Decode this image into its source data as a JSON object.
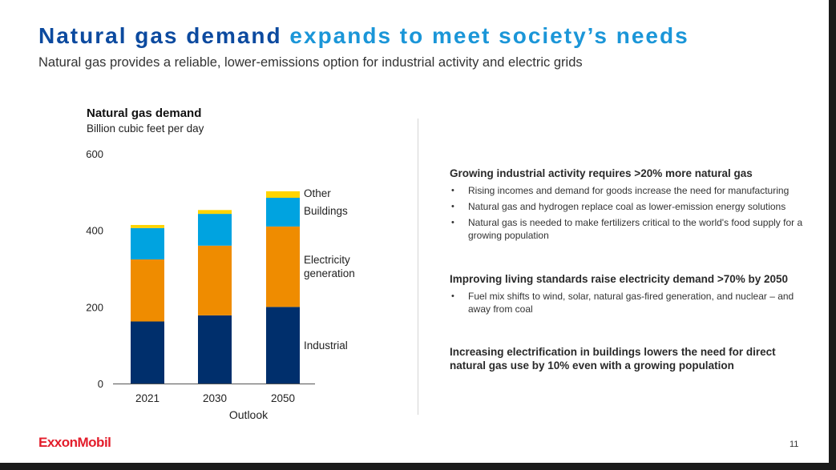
{
  "slide": {
    "title_part1": "Natural gas demand",
    "title_part2": "expands to meet society’s needs",
    "subtitle": "Natural gas provides a reliable, lower-emissions option for industrial activity and electric grids",
    "page_number": "11",
    "logo_text": "ExxonMobil",
    "colors": {
      "title_dark": "#0c4a9f",
      "title_light": "#1b96d8",
      "logo": "#e31d2b"
    }
  },
  "chart_data": {
    "type": "bar",
    "stacked": true,
    "title": "Natural gas demand",
    "ylabel": "Billion cubic feet per day",
    "xlabel": "Outlook",
    "categories": [
      "2021",
      "2030",
      "2050"
    ],
    "ylim": [
      0,
      600
    ],
    "yticks": [
      0,
      200,
      400,
      600
    ],
    "grid": false,
    "legend": "labels at right of last bar",
    "series": [
      {
        "name": "Industrial",
        "color": "#002f6c",
        "values": [
          162,
          178,
          200
        ]
      },
      {
        "name": "Electricity generation",
        "color": "#ef8c00",
        "values": [
          162,
          182,
          210
        ]
      },
      {
        "name": "Buildings",
        "color": "#00a3e0",
        "values": [
          82,
          83,
          75
        ]
      },
      {
        "name": "Other",
        "color": "#ffd400",
        "values": [
          8,
          10,
          17
        ]
      }
    ]
  },
  "sections": [
    {
      "heading": "Growing industrial activity requires >20% more natural gas",
      "bullets": [
        "Rising incomes and demand for goods increase the need for manufacturing",
        "Natural gas and hydrogen replace coal as lower-emission energy solutions",
        "Natural gas is needed to make fertilizers critical to the world's food supply for a growing population"
      ]
    },
    {
      "heading": "Improving living standards raise electricity demand >70% by 2050",
      "bullets": [
        "Fuel mix shifts to wind, solar, natural gas-fired generation, and nuclear – and away from coal"
      ]
    },
    {
      "heading": "Increasing electrification in buildings lowers the need for direct natural gas use by 10% even with a growing population",
      "bullets": []
    }
  ]
}
